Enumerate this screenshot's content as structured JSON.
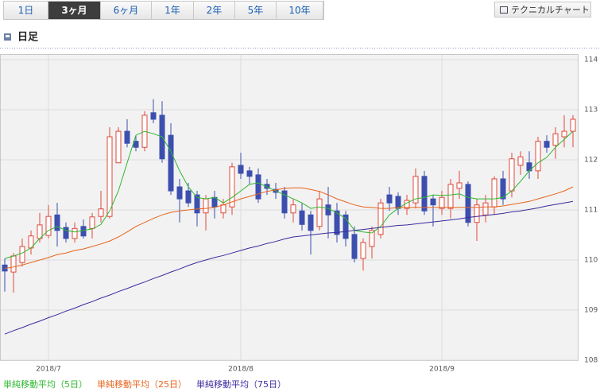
{
  "tabs": [
    {
      "label": "1日"
    },
    {
      "label": "3ヶ月",
      "selected": true
    },
    {
      "label": "6ヶ月"
    },
    {
      "label": "1年"
    },
    {
      "label": "2年"
    },
    {
      "label": "5年"
    },
    {
      "label": "10年"
    }
  ],
  "button": "テクニカルチャート",
  "chart_data": {
    "type": "candlestick",
    "title": "日足",
    "categories": [
      null,
      null,
      null,
      null,
      null,
      "2018/7",
      null,
      null,
      null,
      null,
      null,
      null,
      null,
      null,
      null,
      null,
      null,
      null,
      null,
      null,
      null,
      null,
      null,
      null,
      null,
      null,
      null,
      "2018/8",
      null,
      null,
      null,
      null,
      null,
      null,
      null,
      null,
      null,
      null,
      null,
      null,
      null,
      null,
      null,
      null,
      null,
      null,
      null,
      null,
      null,
      null,
      "2018/9",
      null,
      null,
      null,
      null,
      null,
      null,
      null,
      null,
      null,
      null,
      null,
      null,
      null,
      null,
      null
    ],
    "open": [
      109.9,
      109.76,
      109.95,
      110.24,
      110.43,
      110.49,
      110.9,
      110.65,
      110.43,
      110.67,
      110.63,
      110.87,
      110.87,
      111.94,
      112.57,
      112.37,
      112.25,
      112.94,
      112.89,
      112.49,
      111.46,
      111.38,
      111.3,
      110.94,
      111.25,
      110.94,
      111.06,
      111.89,
      111.78,
      111.7,
      111.51,
      111.41,
      111.38,
      110.94,
      110.98,
      110.9,
      110.67,
      111.1,
      110.98,
      110.9,
      110.51,
      110.03,
      110.27,
      110.51,
      111.3,
      111.27,
      111.03,
      111.14,
      111.67,
      111.22,
      111.03,
      111.03,
      111.43,
      111.51,
      110.75,
      110.9,
      111.06,
      111.62,
      111.38,
      111.89,
      111.94,
      111.78,
      112.37,
      112.29,
      112.46,
      112.57
    ],
    "high": [
      110.03,
      110.14,
      110.43,
      110.59,
      110.94,
      111.1,
      111.14,
      110.75,
      110.75,
      110.81,
      110.94,
      111.38,
      112.65,
      112.65,
      112.81,
      112.49,
      112.97,
      113.21,
      113.17,
      112.73,
      111.62,
      111.54,
      111.38,
      111.3,
      111.38,
      111.22,
      111.94,
      112.14,
      111.86,
      111.83,
      111.62,
      111.54,
      111.46,
      111.22,
      111.14,
      110.98,
      111.38,
      111.46,
      111.14,
      110.98,
      110.67,
      110.43,
      110.67,
      111.22,
      111.46,
      111.35,
      111.3,
      111.83,
      111.78,
      111.3,
      111.38,
      111.62,
      111.78,
      111.57,
      111.22,
      111.3,
      111.67,
      111.78,
      112.14,
      112.17,
      112.17,
      112.46,
      112.49,
      112.65,
      112.89,
      112.89
    ],
    "low": [
      109.37,
      109.35,
      109.87,
      110.11,
      110.35,
      110.43,
      110.27,
      110.35,
      110.35,
      110.43,
      110.43,
      110.75,
      110.83,
      111.94,
      112.25,
      112.17,
      112.17,
      112.73,
      111.94,
      111.3,
      110.75,
      111.06,
      110.67,
      110.59,
      110.83,
      110.83,
      110.9,
      111.62,
      111.51,
      111.14,
      111.3,
      111.22,
      110.83,
      110.75,
      110.59,
      110.11,
      110.59,
      110.43,
      110.35,
      110.27,
      109.95,
      109.79,
      110.03,
      110.43,
      110.98,
      110.9,
      110.9,
      111.03,
      110.9,
      110.67,
      110.9,
      110.83,
      111.22,
      110.67,
      110.38,
      110.75,
      110.9,
      111.1,
      111.25,
      111.7,
      111.62,
      111.62,
      112.14,
      112.02,
      112.25,
      112.25
    ],
    "close": [
      109.78,
      110.08,
      110.27,
      110.48,
      110.7,
      110.87,
      110.59,
      110.43,
      110.63,
      110.48,
      110.86,
      111.02,
      112.46,
      112.57,
      112.33,
      112.25,
      112.89,
      112.81,
      112.02,
      111.38,
      111.22,
      111.14,
      110.94,
      111.22,
      111.06,
      111.1,
      111.86,
      111.73,
      111.67,
      111.22,
      111.43,
      111.35,
      110.94,
      111.1,
      110.71,
      110.59,
      111.22,
      110.9,
      110.51,
      110.43,
      110.03,
      110.35,
      110.59,
      111.14,
      111.14,
      111.03,
      111.19,
      111.67,
      110.98,
      111.1,
      111.25,
      111.51,
      111.54,
      110.75,
      111.1,
      111.14,
      111.62,
      111.22,
      112.02,
      112.06,
      111.78,
      112.37,
      112.25,
      112.52,
      112.57,
      112.81
    ],
    "up_color": "#e0483a",
    "down_color": "#3c4fae",
    "lines": [
      {
        "name": "単純移動平均（5日）",
        "color": "#2eb82e",
        "values": [
          110.03,
          110.08,
          110.14,
          110.24,
          110.43,
          110.59,
          110.67,
          110.59,
          110.56,
          110.59,
          110.62,
          110.71,
          110.98,
          111.38,
          111.94,
          112.49,
          112.57,
          112.52,
          112.46,
          112.17,
          111.78,
          111.46,
          111.25,
          111.22,
          111.25,
          111.14,
          111.25,
          111.38,
          111.51,
          111.54,
          111.46,
          111.38,
          111.3,
          111.22,
          111.14,
          111.03,
          111.06,
          111.03,
          110.94,
          110.83,
          110.59,
          110.56,
          110.54,
          110.67,
          110.9,
          111.03,
          111.14,
          111.22,
          111.25,
          111.3,
          111.29,
          111.3,
          111.32,
          111.25,
          111.22,
          111.22,
          111.22,
          111.25,
          111.38,
          111.57,
          111.78,
          111.94,
          112.05,
          112.25,
          112.41,
          112.57
        ]
      },
      {
        "name": "単純移動平均（25日）",
        "color": "#e8641e",
        "values": [
          109.83,
          109.86,
          109.9,
          109.95,
          110.0,
          110.05,
          110.11,
          110.14,
          110.19,
          110.22,
          110.27,
          110.32,
          110.38,
          110.46,
          110.56,
          110.67,
          110.75,
          110.83,
          110.9,
          110.95,
          110.98,
          111.0,
          111.02,
          111.03,
          111.05,
          111.1,
          111.16,
          111.22,
          111.27,
          111.32,
          111.37,
          111.4,
          111.43,
          111.44,
          111.44,
          111.41,
          111.37,
          111.3,
          111.22,
          111.16,
          111.1,
          111.06,
          111.05,
          111.03,
          111.03,
          111.05,
          111.05,
          111.05,
          111.05,
          111.05,
          111.05,
          111.05,
          111.05,
          111.05,
          111.05,
          111.06,
          111.06,
          111.08,
          111.11,
          111.14,
          111.17,
          111.22,
          111.27,
          111.32,
          111.38,
          111.46
        ]
      },
      {
        "name": "単純移動平均（75日）",
        "color": "#3a2a9e",
        "values": [
          108.52,
          108.59,
          108.65,
          108.72,
          108.78,
          108.85,
          108.91,
          108.98,
          109.04,
          109.11,
          109.17,
          109.24,
          109.3,
          109.37,
          109.43,
          109.5,
          109.56,
          109.63,
          109.69,
          109.76,
          109.82,
          109.89,
          109.95,
          110.0,
          110.05,
          110.09,
          110.14,
          110.19,
          110.24,
          110.28,
          110.33,
          110.37,
          110.42,
          110.46,
          110.48,
          110.5,
          110.52,
          110.54,
          110.55,
          110.57,
          110.59,
          110.61,
          110.63,
          110.65,
          110.67,
          110.69,
          110.7,
          110.72,
          110.74,
          110.76,
          110.78,
          110.8,
          110.82,
          110.85,
          110.87,
          110.89,
          110.91,
          110.93,
          110.96,
          110.98,
          111.01,
          111.04,
          111.08,
          111.11,
          111.14,
          111.17
        ]
      }
    ],
    "ylim": [
      108,
      114
    ],
    "yticks": [
      108,
      109,
      110,
      111,
      112,
      113,
      114
    ],
    "grid": true
  }
}
